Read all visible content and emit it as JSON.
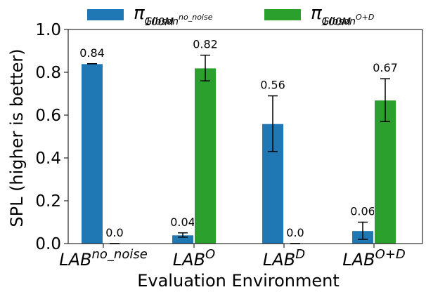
{
  "chart_data": {
    "type": "bar",
    "xlabel": "Evaluation Environment",
    "ylabel": "SPL (higher is better)",
    "ylim": [
      0.0,
      1.0
    ],
    "yticks": [
      "0.0",
      "0.2",
      "0.4",
      "0.6",
      "0.8",
      "1.0"
    ],
    "grid": false,
    "legend_position": "top",
    "categories": [
      {
        "base": "LAB",
        "sup": "no_noise"
      },
      {
        "base": "LAB",
        "sup": "O"
      },
      {
        "base": "LAB",
        "sup": "D"
      },
      {
        "base": "LAB",
        "sup": "O+D"
      }
    ],
    "series": [
      {
        "name": "π Gibson no_noise 100M",
        "legend_pi": "π",
        "legend_sup": "100M",
        "legend_sub": "Gibson",
        "legend_subsup": "no_noise",
        "color": "#1f77b4",
        "values": [
          0.84,
          0.04,
          0.56,
          0.06
        ],
        "errors": [
          0.0,
          0.01,
          0.13,
          0.04
        ],
        "labels": [
          "0.84",
          "0.04",
          "0.56",
          "0.06"
        ]
      },
      {
        "name": "π Gibson O+D 100M",
        "legend_pi": "π",
        "legend_sup": "100M",
        "legend_sub": "Gibson",
        "legend_subsup": "O+D",
        "color": "#2ca02c",
        "values": [
          0.0,
          0.82,
          0.0,
          0.67
        ],
        "errors": [
          0.0,
          0.06,
          0.0,
          0.1
        ],
        "labels": [
          "0.0",
          "0.82",
          "0.0",
          "0.67"
        ]
      }
    ]
  }
}
